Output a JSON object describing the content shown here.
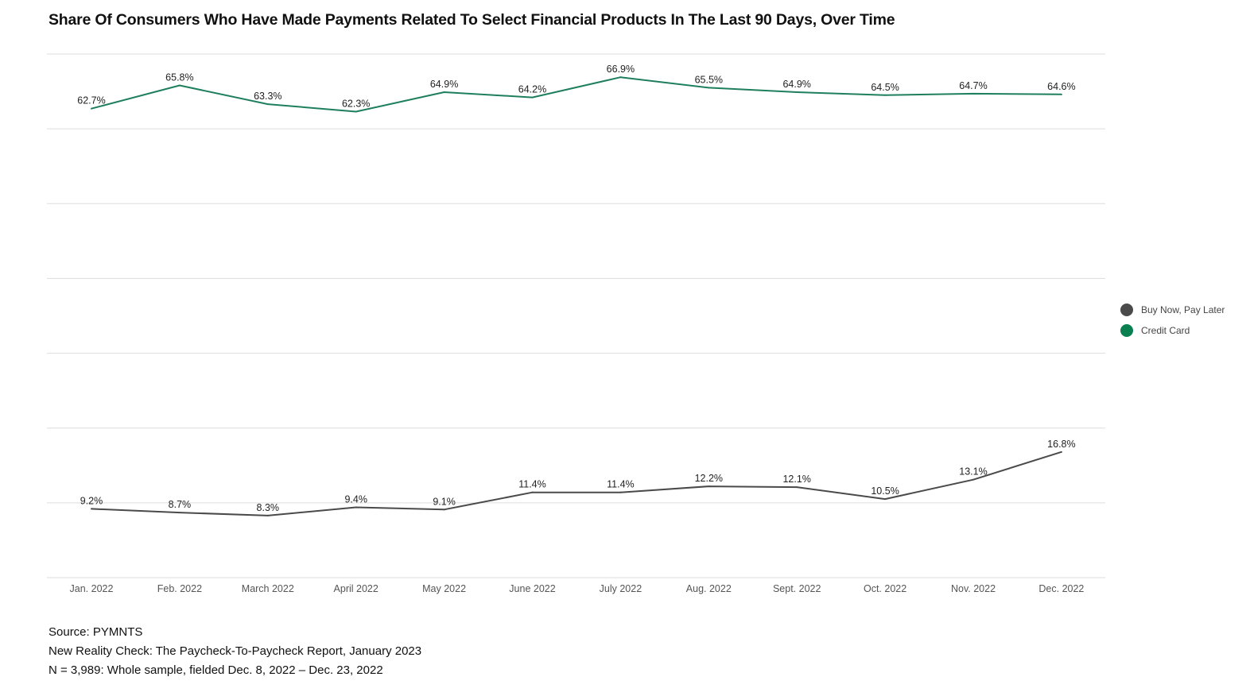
{
  "colors": {
    "bnpl": "#4a4a4a",
    "credit": "#1e7f5c",
    "credit_legend": "#0a8050",
    "grid": "#dddddd"
  },
  "chart_data": {
    "type": "line",
    "title": "Share Of Consumers Who Have Made Payments Related To Select Financial Products In The Last 90 Days, Over Time",
    "categories": [
      "Jan. 2022",
      "Feb. 2022",
      "March 2022",
      "April 2022",
      "May 2022",
      "June 2022",
      "July 2022",
      "Aug. 2022",
      "Sept. 2022",
      "Oct. 2022",
      "Nov. 2022",
      "Dec. 2022"
    ],
    "ylim": [
      0,
      70
    ],
    "gridlines": [
      0,
      10,
      20,
      30,
      40,
      50,
      60,
      70
    ],
    "xlabel": "",
    "ylabel": "",
    "legend_position": "right",
    "series": [
      {
        "name": "Buy Now, Pay Later",
        "color": "#4a4a4a",
        "values": [
          9.2,
          8.7,
          8.3,
          9.4,
          9.1,
          11.4,
          11.4,
          12.2,
          12.1,
          10.5,
          13.1,
          16.8
        ],
        "labels": [
          "9.2%",
          "8.7%",
          "8.3%",
          "9.4%",
          "9.1%",
          "11.4%",
          "11.4%",
          "12.2%",
          "12.1%",
          "10.5%",
          "13.1%",
          "16.8%"
        ]
      },
      {
        "name": "Credit Card",
        "color": "#1e7f5c",
        "values": [
          62.7,
          65.8,
          63.3,
          62.3,
          64.9,
          64.2,
          66.9,
          65.5,
          64.9,
          64.5,
          64.7,
          64.6
        ],
        "labels": [
          "62.7%",
          "65.8%",
          "63.3%",
          "62.3%",
          "64.9%",
          "64.2%",
          "66.9%",
          "65.5%",
          "64.9%",
          "64.5%",
          "64.7%",
          "64.6%"
        ]
      }
    ]
  },
  "legend": [
    {
      "label": "Buy Now, Pay Later",
      "color": "#4a4a4a"
    },
    {
      "label": "Credit Card",
      "color": "#0a8050"
    }
  ],
  "source": {
    "line1": "Source: PYMNTS",
    "line2": "New Reality Check: The Paycheck-To-Paycheck Report, January 2023",
    "line3": "N = 3,989: Whole sample, fielded Dec. 8, 2022 – Dec. 23, 2022"
  }
}
